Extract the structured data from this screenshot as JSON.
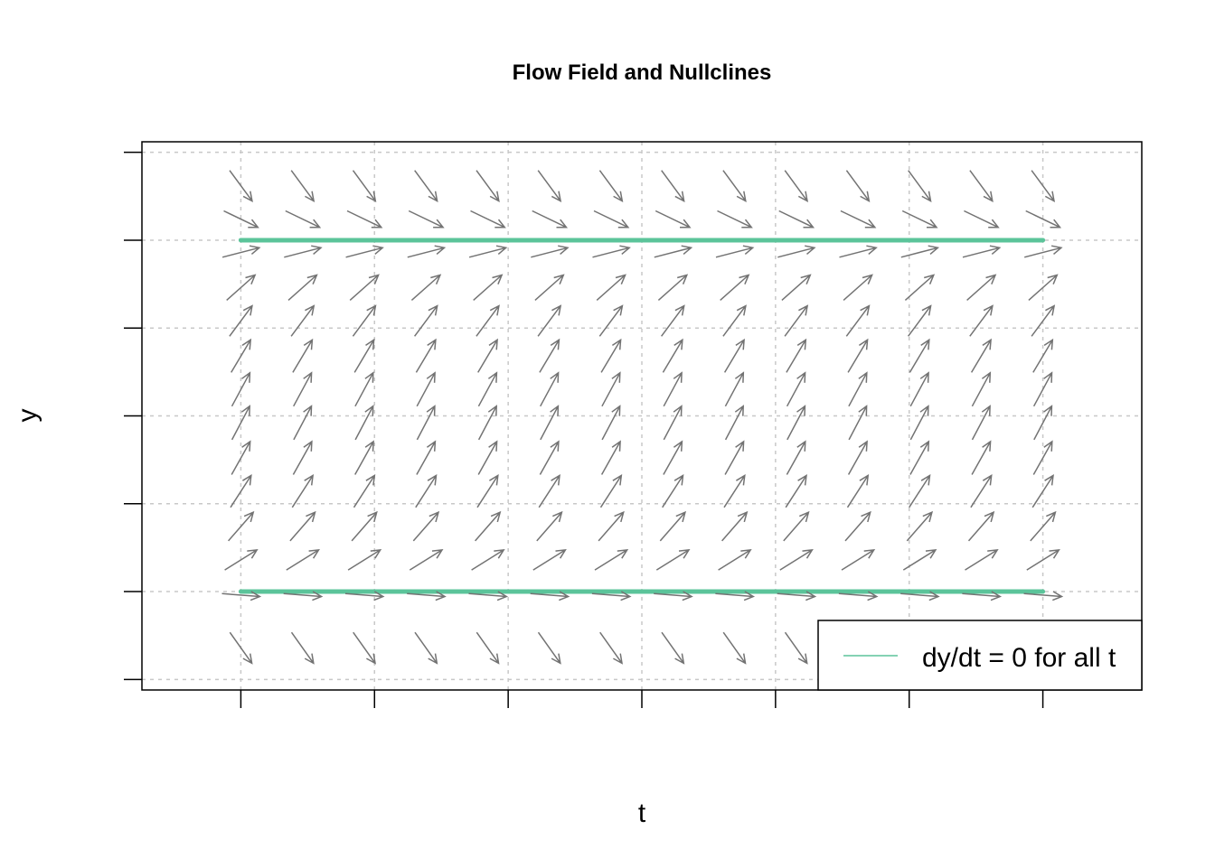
{
  "chart_data": {
    "type": "vector-field",
    "title": "Flow Field and Nullclines",
    "xlabel": "t",
    "ylabel": "y",
    "xlim": [
      -0.37,
      3.37
    ],
    "ylim": [
      -0.06,
      3.06
    ],
    "x_ticks": [
      0,
      0.5,
      1,
      1.5,
      2,
      2.5,
      3
    ],
    "y_ticks": [
      0,
      0.5,
      1,
      1.5,
      2,
      2.5,
      3
    ],
    "tick_labels_shown": false,
    "grid": true,
    "field": {
      "t_values": [
        0,
        0.2308,
        0.4615,
        0.6923,
        0.9231,
        1.1538,
        1.3846,
        1.6154,
        1.8462,
        2.0769,
        2.3077,
        2.5385,
        2.7692,
        3
      ],
      "y_values": [
        0.18,
        0.48,
        0.68,
        0.87,
        1.07,
        1.26,
        1.46,
        1.65,
        1.84,
        2.04,
        2.23,
        2.43,
        2.62,
        2.81
      ],
      "dydt_rule": "(y - 0.5) * (2.5 - y)",
      "color": "#737373"
    },
    "nullclines": [
      {
        "y": 0.5,
        "t_from": 0,
        "t_to": 3
      },
      {
        "y": 2.5,
        "t_from": 0,
        "t_to": 3
      }
    ],
    "nullcline_color": "#5bc49a",
    "legend": {
      "position": "bottom-right",
      "entries": [
        {
          "label": "dy/dt = 0 for all t",
          "color": "#5bc49a"
        }
      ]
    }
  }
}
